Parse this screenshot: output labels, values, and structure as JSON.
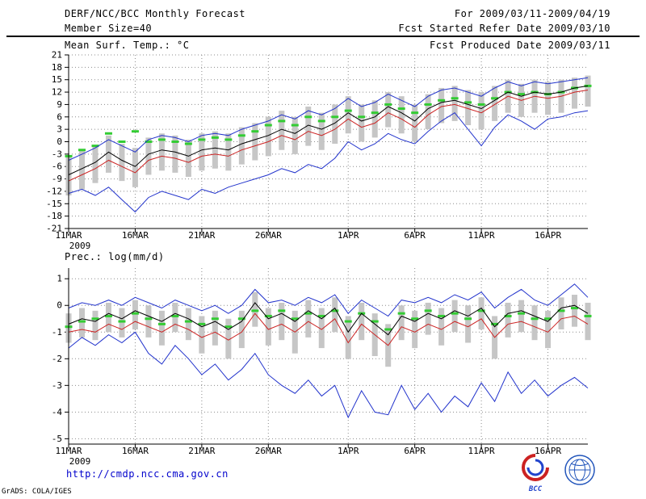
{
  "header": {
    "title": "DERF/NCC/BCC Monthly Forecast",
    "member_size": "Member Size=40",
    "forecast_range": "For 2009/03/11-2009/04/19",
    "refer_date": "Fcst Started Refer Date 2009/03/10",
    "produced_date": "Fcst Produced Date 2009/03/11"
  },
  "footer": {
    "url": "http://cmdp.ncc.cma.gov.cn",
    "credit": "GrADS: COLA/IGES",
    "logo_bcc_label": "BCC"
  },
  "colors": {
    "envelope_blue": "#2233cc",
    "member_red": "#cc2222",
    "mean_black": "#000000",
    "marker_green": "#33cc33",
    "spread_gray": "#c6c6c6",
    "grid_gray": "#8c8c8c",
    "url_blue": "#0000cc"
  },
  "x_axis": {
    "tick_positions": [
      0,
      5,
      10,
      15,
      21,
      26,
      31,
      36
    ],
    "tick_labels": [
      "11MAR",
      "16MAR",
      "21MAR",
      "26MAR",
      "1APR",
      "6APR",
      "11APR",
      "16APR"
    ],
    "year_label": "2009",
    "n_points": 40
  },
  "chart_data": [
    {
      "type": "line",
      "title": "Mean Surf. Temp.: °C",
      "ylabel": "",
      "ylim": [
        -21,
        21
      ],
      "ytick_range": [
        -21,
        21
      ],
      "ytick_step": 3,
      "grid": "dotted",
      "legend": "none",
      "bar_color": "#c6c6c6",
      "marker_color": "#33cc33",
      "spread_high": [
        -3.5,
        -2,
        -1,
        1.5,
        -0.5,
        -1.5,
        1,
        2,
        1.5,
        0.5,
        2,
        2.5,
        2,
        3.5,
        4.5,
        6,
        7.5,
        6,
        8.5,
        7,
        9,
        11,
        9,
        10,
        12,
        11,
        9,
        11.5,
        13,
        13.5,
        12.5,
        12,
        13.5,
        15,
        14,
        15,
        14.5,
        15,
        15.5,
        16
      ],
      "spread_low": [
        -13,
        -11.5,
        -10,
        -7.5,
        -9.5,
        -11,
        -8,
        -7,
        -7.5,
        -8.5,
        -7,
        -6.5,
        -7,
        -5.5,
        -4.5,
        -3.5,
        -2,
        -3,
        -1,
        -2,
        -0.5,
        2,
        0,
        1,
        3.5,
        2,
        0,
        3,
        4.5,
        5,
        4,
        3,
        5,
        7,
        6,
        7,
        6.5,
        7,
        8,
        8.5
      ],
      "green_markers": [
        -3.5,
        -2,
        -1,
        2,
        0,
        2.5,
        0,
        0.5,
        0,
        -0.5,
        0.5,
        1,
        0.5,
        1.5,
        2.5,
        4,
        5,
        4,
        6,
        5,
        6,
        7.5,
        6,
        7,
        9,
        8,
        7,
        9,
        10,
        10.5,
        9.5,
        9,
        10.5,
        12,
        11.5,
        12,
        11.5,
        12,
        13,
        13.5
      ],
      "series": [
        {
          "name": "ensemble-max",
          "color": "#2233cc",
          "width": 1,
          "values": [
            -4.5,
            -3,
            -1.5,
            0.5,
            -1,
            -2.5,
            0.5,
            1.5,
            1,
            0,
            1.5,
            2,
            1.5,
            3,
            4,
            5,
            6.5,
            5.5,
            7.5,
            6.5,
            8,
            10.5,
            8.5,
            9.5,
            11.5,
            10,
            8.5,
            11,
            12.5,
            13,
            12,
            11,
            13,
            14.5,
            13.5,
            14.5,
            14,
            14.5,
            15,
            15.5
          ]
        },
        {
          "name": "ensemble-min",
          "color": "#2233cc",
          "width": 1,
          "values": [
            -12.5,
            -11.5,
            -13,
            -11,
            -14,
            -17,
            -13.5,
            -12,
            -13,
            -14,
            -11.5,
            -12.5,
            -11,
            -10,
            -9,
            -8,
            -6.5,
            -7.5,
            -5.5,
            -6.5,
            -4,
            0,
            -2,
            -0.5,
            2,
            0.5,
            -0.5,
            2.5,
            5,
            7,
            3,
            -1,
            3.5,
            6.5,
            5,
            3,
            5.5,
            6,
            7,
            7.5
          ]
        },
        {
          "name": "member-red",
          "color": "#cc2222",
          "width": 1,
          "values": [
            -9.5,
            -8,
            -6.5,
            -4.5,
            -6,
            -7.5,
            -4.5,
            -3.5,
            -4,
            -5,
            -3.5,
            -3,
            -3.5,
            -2,
            -1,
            0,
            1.5,
            0.5,
            2.5,
            1.5,
            3,
            5.5,
            3.5,
            4.5,
            7,
            5.5,
            3.5,
            6.5,
            8.5,
            9,
            8,
            7,
            9,
            11,
            10,
            11,
            10.5,
            11,
            12,
            12.5
          ]
        },
        {
          "name": "ensemble-mean",
          "color": "#000000",
          "width": 1,
          "values": [
            -8,
            -6.5,
            -5,
            -2.5,
            -4.5,
            -6,
            -3,
            -2,
            -2.5,
            -3.5,
            -2,
            -1.5,
            -2,
            -0.5,
            0.5,
            1.5,
            3,
            2,
            4,
            3,
            4.5,
            7,
            5,
            6,
            8.5,
            7,
            5,
            8,
            9.5,
            10,
            9,
            8,
            10,
            12,
            11,
            12,
            11.5,
            12,
            13,
            13.5
          ]
        }
      ]
    },
    {
      "type": "line",
      "title": "Prec.: log(mm/d)",
      "ylabel": "",
      "ylim": [
        -5.2,
        1.4
      ],
      "ytick_range": [
        -5,
        1
      ],
      "ytick_step": 1,
      "grid": "dotted",
      "legend": "none",
      "bar_color": "#c6c6c6",
      "marker_color": "#33cc33",
      "spread_high": [
        -0.3,
        -0.1,
        -0.2,
        0.1,
        -0.1,
        0.2,
        0,
        -0.2,
        0.1,
        -0.1,
        -0.4,
        -0.2,
        -0.5,
        -0.2,
        0.5,
        -0.1,
        0.1,
        -0.2,
        0.2,
        -0.1,
        0.3,
        -0.4,
        0.1,
        -0.3,
        -0.7,
        0,
        -0.2,
        0.1,
        -0.1,
        0.2,
        0,
        0.3,
        -0.4,
        0.1,
        0.2,
        0,
        -0.2,
        0.3,
        0.4,
        0.1
      ],
      "spread_low": [
        -1.4,
        -1.2,
        -1.3,
        -1,
        -1.2,
        -0.9,
        -1.2,
        -1.5,
        -1,
        -1.3,
        -1.8,
        -1.5,
        -2,
        -1.6,
        -0.8,
        -1.5,
        -1.3,
        -1.8,
        -1.2,
        -1.6,
        -1,
        -2,
        -1.3,
        -1.9,
        -2.3,
        -1.3,
        -1.6,
        -1.1,
        -1.5,
        -1,
        -1.4,
        -0.9,
        -2,
        -1.2,
        -1,
        -1.3,
        -1.6,
        -0.9,
        -0.8,
        -1.3
      ],
      "green_markers": [
        -0.8,
        -0.6,
        -0.5,
        -0.4,
        -0.6,
        -0.3,
        -0.5,
        -0.7,
        -0.4,
        -0.6,
        -0.7,
        -0.5,
        -0.8,
        -0.5,
        -0.2,
        -0.4,
        -0.2,
        -0.5,
        -0.3,
        -0.4,
        -0.2,
        -0.6,
        -0.3,
        -0.6,
        -0.9,
        -0.3,
        -0.5,
        -0.2,
        -0.4,
        -0.3,
        -0.5,
        -0.2,
        -0.7,
        -0.4,
        -0.3,
        -0.5,
        -0.5,
        -0.2,
        -0.1,
        -0.4
      ],
      "series": [
        {
          "name": "ensemble-max",
          "color": "#2233cc",
          "width": 1,
          "values": [
            -0.1,
            0.1,
            0,
            0.2,
            0,
            0.3,
            0.1,
            -0.1,
            0.2,
            0,
            -0.2,
            0,
            -0.3,
            0,
            0.6,
            0.1,
            0.2,
            0,
            0.3,
            0.1,
            0.4,
            -0.3,
            0.2,
            -0.1,
            -0.4,
            0.2,
            0.1,
            0.3,
            0.1,
            0.4,
            0.2,
            0.5,
            -0.1,
            0.3,
            0.6,
            0.2,
            0,
            0.4,
            0.8,
            0.3
          ]
        },
        {
          "name": "ensemble-min",
          "color": "#2233cc",
          "width": 1,
          "values": [
            -1.6,
            -1.2,
            -1.5,
            -1.1,
            -1.4,
            -1,
            -1.8,
            -2.2,
            -1.5,
            -2,
            -2.6,
            -2.2,
            -2.8,
            -2.4,
            -1.8,
            -2.6,
            -3,
            -3.3,
            -2.8,
            -3.4,
            -3,
            -4.2,
            -3.2,
            -4,
            -4.1,
            -3,
            -3.9,
            -3.3,
            -4,
            -3.4,
            -3.8,
            -2.9,
            -3.6,
            -2.5,
            -3.3,
            -2.8,
            -3.4,
            -3,
            -2.7,
            -3.1
          ]
        },
        {
          "name": "member-red",
          "color": "#cc2222",
          "width": 1,
          "values": [
            -1,
            -0.9,
            -1,
            -0.7,
            -0.9,
            -0.6,
            -0.8,
            -1,
            -0.7,
            -0.9,
            -1.2,
            -1,
            -1.3,
            -1,
            -0.3,
            -0.9,
            -0.7,
            -1,
            -0.6,
            -0.9,
            -0.5,
            -1.4,
            -0.7,
            -1.1,
            -1.5,
            -0.8,
            -1,
            -0.7,
            -0.9,
            -0.6,
            -0.8,
            -0.5,
            -1.2,
            -0.7,
            -0.6,
            -0.8,
            -1,
            -0.5,
            -0.4,
            -0.7
          ]
        },
        {
          "name": "ensemble-mean",
          "color": "#000000",
          "width": 1,
          "values": [
            -0.7,
            -0.5,
            -0.6,
            -0.3,
            -0.5,
            -0.2,
            -0.4,
            -0.6,
            -0.3,
            -0.5,
            -0.8,
            -0.6,
            -0.9,
            -0.6,
            0.1,
            -0.5,
            -0.3,
            -0.6,
            -0.2,
            -0.5,
            -0.1,
            -1,
            -0.3,
            -0.7,
            -1.1,
            -0.4,
            -0.6,
            -0.3,
            -0.5,
            -0.2,
            -0.4,
            -0.1,
            -0.8,
            -0.3,
            -0.2,
            -0.4,
            -0.6,
            -0.1,
            0,
            -0.3
          ]
        }
      ]
    }
  ]
}
